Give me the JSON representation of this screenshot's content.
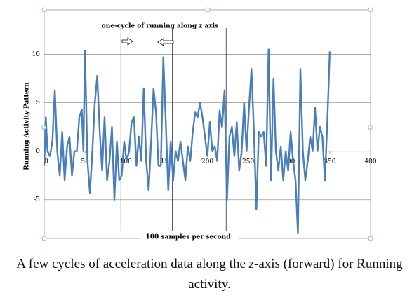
{
  "chart_data": {
    "type": "line",
    "title": "one-cycle of running along z axis",
    "x_label": "100 samples per second",
    "y_label": "Running Activity Pattern",
    "x": [
      0,
      2,
      4,
      7,
      10,
      13,
      16,
      19,
      22,
      25,
      28,
      31,
      34,
      37,
      40,
      43,
      46,
      48,
      50,
      53,
      56,
      59,
      62,
      65,
      68,
      71,
      74,
      77,
      80,
      83,
      86,
      89,
      92,
      95,
      98,
      101,
      104,
      107,
      110,
      113,
      116,
      119,
      122,
      125,
      128,
      131,
      134,
      137,
      140,
      143,
      146,
      149,
      152,
      155,
      158,
      161,
      164,
      167,
      170,
      173,
      176,
      179,
      182,
      185,
      188,
      191,
      194,
      197,
      200,
      203,
      206,
      209,
      212,
      215,
      218,
      221,
      224,
      227,
      230,
      233,
      236,
      239,
      242,
      245,
      248,
      251,
      254,
      257,
      260,
      263,
      266,
      269,
      272,
      275,
      278,
      281,
      284,
      287,
      290,
      293,
      296,
      299,
      302,
      305,
      308,
      311,
      314,
      317,
      320,
      323,
      326,
      329,
      332,
      335,
      338,
      341,
      344,
      347,
      350
    ],
    "series": [
      {
        "name": "z-axis",
        "color": "#4a7ebb",
        "values": [
          -1.5,
          3.5,
          0,
          -0.5,
          1,
          6.3,
          0,
          -2.5,
          2,
          -3,
          0.5,
          1.5,
          -2.5,
          0,
          0,
          3.5,
          4.3,
          0,
          10.4,
          -1,
          -4.3,
          0,
          5,
          7.8,
          2,
          -2,
          3.5,
          -3,
          -1,
          2.5,
          -5,
          1,
          -3,
          -2.5,
          1,
          -1,
          0,
          3,
          3.5,
          -1.5,
          1.5,
          -1,
          6.5,
          -1,
          -4,
          1,
          6.5,
          4,
          -1.5,
          -1.5,
          9.7,
          3,
          -4,
          1,
          -3,
          0,
          -1,
          1,
          -1,
          -3,
          0.5,
          -1,
          2,
          4,
          3.5,
          5,
          3.5,
          1.5,
          -0.5,
          3,
          0,
          0.5,
          -1,
          4.2,
          2.5,
          6.3,
          -5,
          1.5,
          2.5,
          -0.5,
          3,
          -2,
          0,
          5,
          0,
          4.5,
          8.5,
          2,
          -6,
          2,
          1.5,
          2,
          -1.5,
          10.5,
          -3,
          7.5,
          0,
          -2,
          0.5,
          -3,
          0,
          -2,
          2,
          -1,
          -3,
          -8.5,
          8.5,
          0,
          -3,
          -1,
          1.5,
          0,
          4.5,
          0,
          2.5,
          1.5,
          -3,
          3,
          10.3
        ]
      }
    ],
    "markers": [
      94,
      157,
      223
    ],
    "xlim": [
      0,
      400
    ],
    "xticks": [
      0,
      50,
      100,
      150,
      200,
      250,
      300,
      350,
      400
    ],
    "ylim": [
      -9,
      14.6
    ],
    "yticks": [
      -5,
      0,
      5,
      10
    ],
    "grid": true
  },
  "caption": {
    "parts": [
      "A few cycles of acceleration data along the ",
      "z",
      "-axis (forward) for Running activity."
    ]
  }
}
